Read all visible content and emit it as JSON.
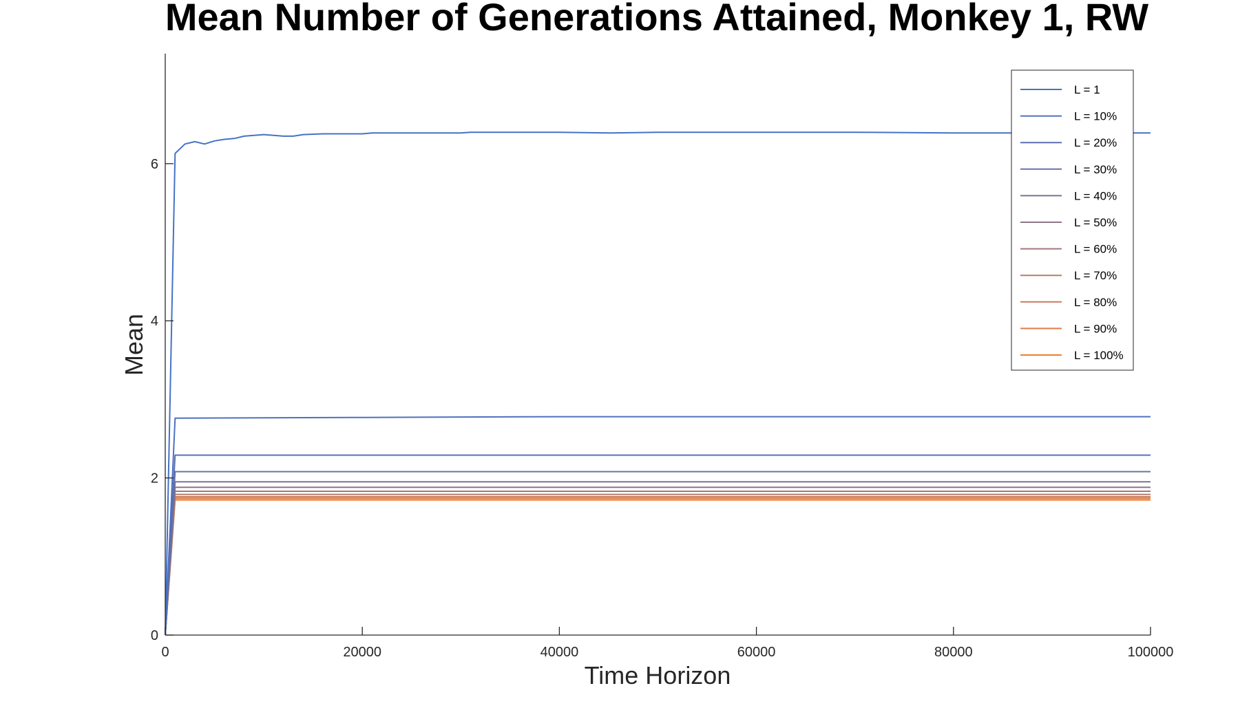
{
  "chart_data": {
    "type": "line",
    "title": "Mean Number of Generations Attained, Monkey 1, RW",
    "xlabel": "Time Horizon",
    "ylabel": "Mean",
    "xlim": [
      0,
      100000
    ],
    "ylim": [
      0,
      7.4
    ],
    "xticks": [
      0,
      20000,
      40000,
      60000,
      80000,
      100000
    ],
    "yticks": [
      0,
      2,
      4,
      6
    ],
    "xtick_labels": [
      "0",
      "20000",
      "40000",
      "60000",
      "80000",
      "100000"
    ],
    "ytick_labels": [
      "0",
      "2",
      "4",
      "6"
    ],
    "grid": false,
    "legend_position": "top-right",
    "series": [
      {
        "name": "L = 1",
        "color": "#4472c4",
        "x": [
          0,
          1000,
          2000,
          3000,
          4000,
          5000,
          6000,
          7000,
          8000,
          9000,
          10000,
          12000,
          13000,
          14000,
          16000,
          18000,
          20000,
          21000,
          25000,
          30000,
          31000,
          40000,
          45000,
          50000,
          55000,
          60000,
          70000,
          80000,
          90000,
          100000
        ],
        "y": [
          0,
          6.13,
          6.25,
          6.28,
          6.25,
          6.29,
          6.31,
          6.32,
          6.35,
          6.36,
          6.37,
          6.35,
          6.35,
          6.37,
          6.38,
          6.38,
          6.38,
          6.39,
          6.39,
          6.39,
          6.4,
          6.4,
          6.39,
          6.4,
          6.4,
          6.4,
          6.4,
          6.39,
          6.39,
          6.39
        ]
      },
      {
        "name": "L = 10%",
        "color": "#4d70bd",
        "x": [
          0,
          1000,
          20000,
          40000,
          60000,
          80000,
          100000
        ],
        "y": [
          0,
          2.76,
          2.77,
          2.78,
          2.78,
          2.78,
          2.78
        ]
      },
      {
        "name": "L = 20%",
        "color": "#5a6fb0",
        "x": [
          0,
          1000,
          20000,
          40000,
          60000,
          80000,
          100000
        ],
        "y": [
          0,
          2.29,
          2.29,
          2.29,
          2.29,
          2.29,
          2.29
        ]
      },
      {
        "name": "L = 30%",
        "color": "#6b70a4",
        "x": [
          0,
          1000,
          20000,
          40000,
          60000,
          80000,
          100000
        ],
        "y": [
          0,
          2.08,
          2.08,
          2.08,
          2.08,
          2.08,
          2.08
        ]
      },
      {
        "name": "L = 40%",
        "color": "#7b7295",
        "x": [
          0,
          1000,
          20000,
          40000,
          60000,
          80000,
          100000
        ],
        "y": [
          0,
          1.95,
          1.95,
          1.95,
          1.95,
          1.95,
          1.95
        ]
      },
      {
        "name": "L = 50%",
        "color": "#8d7589",
        "x": [
          0,
          1000,
          20000,
          40000,
          60000,
          80000,
          100000
        ],
        "y": [
          0,
          1.88,
          1.88,
          1.88,
          1.88,
          1.88,
          1.88
        ]
      },
      {
        "name": "L = 60%",
        "color": "#9f787c",
        "x": [
          0,
          1000,
          20000,
          40000,
          60000,
          80000,
          100000
        ],
        "y": [
          0,
          1.83,
          1.83,
          1.83,
          1.83,
          1.83,
          1.83
        ]
      },
      {
        "name": "L = 70%",
        "color": "#b57a6b",
        "x": [
          0,
          1000,
          20000,
          40000,
          60000,
          80000,
          100000
        ],
        "y": [
          0,
          1.79,
          1.79,
          1.79,
          1.79,
          1.79,
          1.79
        ]
      },
      {
        "name": "L = 80%",
        "color": "#c87c5c",
        "x": [
          0,
          1000,
          20000,
          40000,
          60000,
          80000,
          100000
        ],
        "y": [
          0,
          1.76,
          1.76,
          1.76,
          1.76,
          1.76,
          1.76
        ]
      },
      {
        "name": "L = 90%",
        "color": "#db7e4a",
        "x": [
          0,
          1000,
          20000,
          40000,
          60000,
          80000,
          100000
        ],
        "y": [
          0,
          1.74,
          1.74,
          1.74,
          1.74,
          1.74,
          1.74
        ]
      },
      {
        "name": "L = 100%",
        "color": "#ed7d31",
        "x": [
          0,
          1000,
          20000,
          40000,
          60000,
          80000,
          100000
        ],
        "y": [
          0,
          1.72,
          1.72,
          1.72,
          1.72,
          1.72,
          1.72
        ]
      }
    ]
  }
}
